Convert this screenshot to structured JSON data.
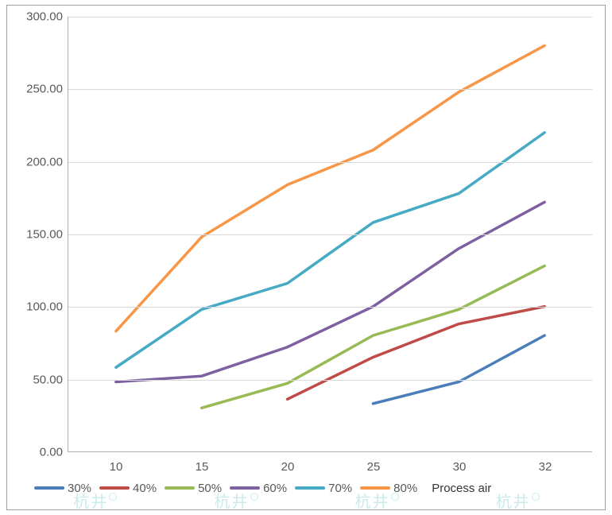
{
  "chart": {
    "type": "line",
    "background_color": "#ffffff",
    "border_color": "#9aa0a6",
    "grid_color": "#d9d9d9",
    "axis_color": "#b0b0b0",
    "label_color": "#595959",
    "label_fontsize": 15,
    "line_width": 3.5,
    "y": {
      "min": 0,
      "max": 300,
      "step": 50,
      "ticks": [
        "0.00",
        "50.00",
        "100.00",
        "150.00",
        "200.00",
        "250.00",
        "300.00"
      ]
    },
    "x": {
      "categories": [
        "10",
        "15",
        "20",
        "25",
        "30",
        "32"
      ]
    },
    "series": [
      {
        "name": "30%",
        "color": "#4a7ebb",
        "data": [
          null,
          null,
          null,
          33,
          48,
          80
        ]
      },
      {
        "name": "40%",
        "color": "#be4b48",
        "data": [
          null,
          null,
          36,
          65,
          88,
          100
        ]
      },
      {
        "name": "50%",
        "color": "#98b954",
        "data": [
          null,
          30,
          47,
          80,
          98,
          128
        ]
      },
      {
        "name": "60%",
        "color": "#7d60a0",
        "data": [
          48,
          52,
          72,
          100,
          140,
          172
        ]
      },
      {
        "name": "70%",
        "color": "#46aac5",
        "data": [
          58,
          98,
          116,
          158,
          178,
          220
        ]
      },
      {
        "name": "80%",
        "color": "#f79646",
        "data": [
          83,
          148,
          184,
          208,
          248,
          280
        ]
      }
    ],
    "legend_extra": "Process air"
  },
  "watermark": {
    "text": "杭井",
    "color": "#c9ecea",
    "positions_pct": [
      12,
      35,
      58,
      81
    ]
  }
}
